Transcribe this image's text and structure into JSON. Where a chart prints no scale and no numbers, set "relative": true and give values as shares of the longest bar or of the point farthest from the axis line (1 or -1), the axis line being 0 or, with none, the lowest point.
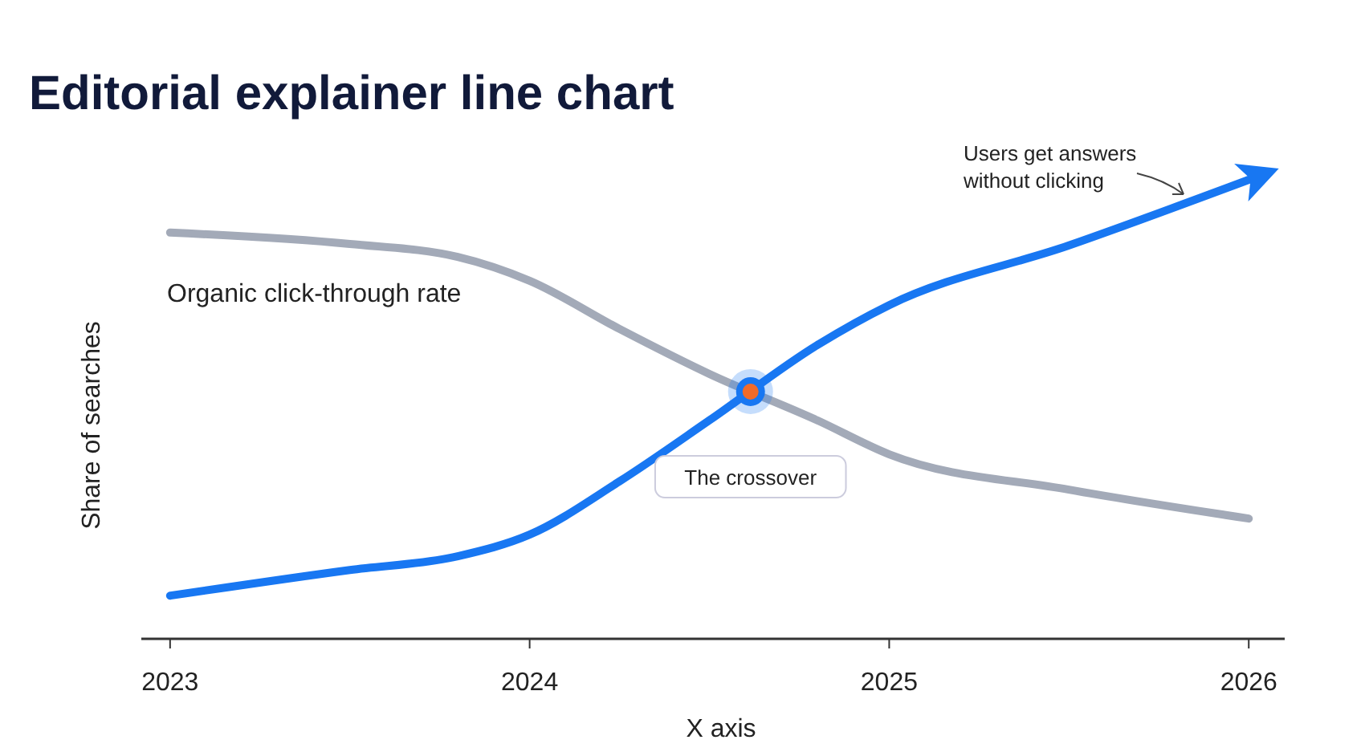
{
  "chart_data": {
    "type": "line",
    "title": "Editorial explainer line chart",
    "xlabel": "X axis",
    "ylabel": "Share of searches",
    "relative": true,
    "xlim": [
      2022.92,
      2026.1
    ],
    "xticks": [
      2023,
      2024,
      2025,
      2026
    ],
    "series": [
      {
        "name": "Organic click-through rate",
        "color": "#a3aab8",
        "x": [
          2023,
          2023.5,
          2023.8,
          2024,
          2024.25,
          2024.5,
          2024.8,
          2025,
          2025.5,
          2026
        ],
        "values": [
          0.885,
          0.86,
          0.832,
          0.78,
          0.675,
          0.577,
          0.476,
          0.402,
          0.325,
          0.262
        ]
      },
      {
        "color": "#1877f2",
        "x": [
          2023,
          2023.5,
          2023.8,
          2024,
          2024.25,
          2024.5,
          2024.8,
          2025,
          2025.5,
          2026
        ],
        "values": [
          0.094,
          0.15,
          0.18,
          0.227,
          0.343,
          0.476,
          0.64,
          0.727,
          0.857,
          1
        ]
      }
    ],
    "annotations": [
      "The crossover",
      "Users get answers without clicking"
    ],
    "line_style": "solid",
    "marker": "none"
  }
}
